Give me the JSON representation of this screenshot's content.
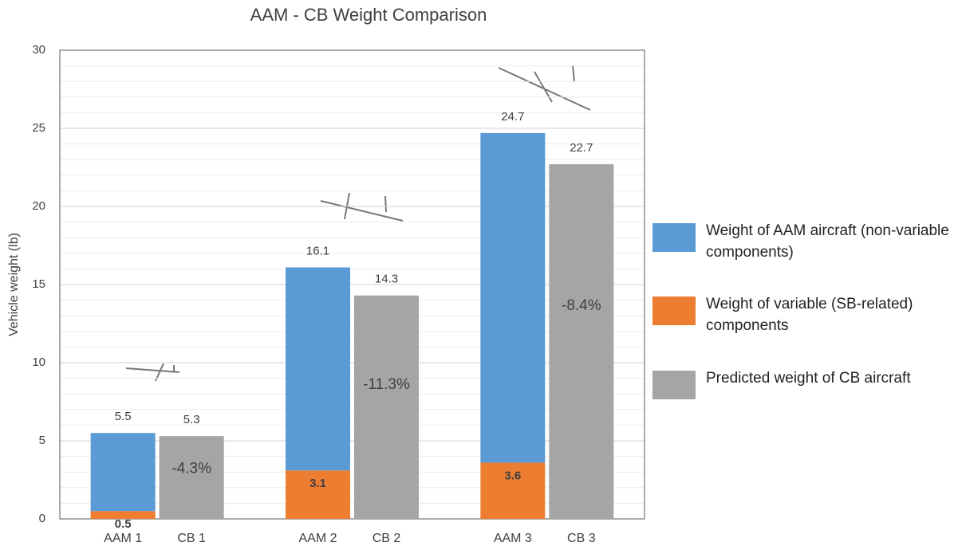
{
  "chart_data": {
    "type": "stacked-bar",
    "title": "AAM - CB Weight Comparison",
    "y_label": "Vehicle weight (lb)",
    "categories": [
      "AAM 1",
      "CB 1",
      "AAM 2",
      "CB 2",
      "AAM 3",
      "CB 3"
    ],
    "series": [
      {
        "name": "Weight of AAM aircraft (non-variable components)",
        "color": "#5b9bd5",
        "values": [
          5.0,
          null,
          13.0,
          null,
          21.1,
          null
        ]
      },
      {
        "name": "Weight of variable (SB-related) components",
        "color": "#ed7d31",
        "values": [
          0.5,
          null,
          3.1,
          null,
          3.6,
          null
        ]
      },
      {
        "name": "Predicted weight of CB aircraft",
        "color": "#a5a5a5",
        "values": [
          null,
          5.3,
          null,
          14.3,
          null,
          22.7
        ]
      }
    ],
    "totals": [
      5.5,
      null,
      16.1,
      null,
      24.7,
      null
    ],
    "annotations": [
      null,
      "-4.3%",
      null,
      "-11.3%",
      null,
      "-8.4%"
    ],
    "ylim": [
      0,
      30
    ],
    "yticks": [
      0,
      5,
      10,
      15,
      20,
      25,
      30
    ],
    "grid": true
  }
}
